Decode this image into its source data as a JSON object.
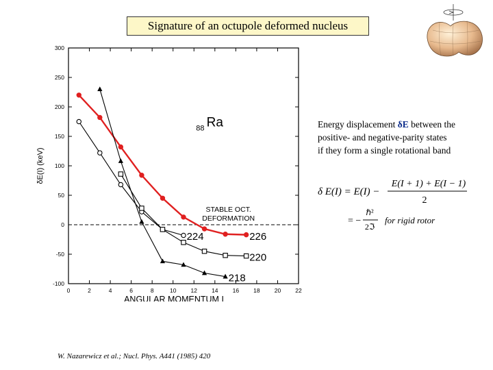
{
  "title": "Signature of an octupole deformed nucleus",
  "description": {
    "prefix": "Energy displacement ",
    "symbol": "δE",
    "line1_rest": " between the",
    "line2": "positive- and negative-parity states",
    "line3": "if they form a single rotational band"
  },
  "formula": {
    "lhs": "δ E(I) = E(I) −",
    "numerator": "E(I + 1) + E(I − 1)",
    "denominator": "2",
    "approx_lhs": "= −",
    "frac_top": "ℏ²",
    "frac_bot": "2ℑ",
    "condition": "for  rigid  rotor"
  },
  "citation": "W. Nazarewicz et al.; Nucl. Phys. A441 (1985) 420",
  "chart_data": {
    "type": "line",
    "element_label": {
      "mass_prefix": "88",
      "symbol": "Ra"
    },
    "xlabel": "ANGULAR MOMENTUM I",
    "ylabel": "δE(I) (keV)",
    "xlim": [
      0,
      22
    ],
    "ylim": [
      -100,
      300
    ],
    "xticks": [
      0,
      2,
      4,
      6,
      8,
      10,
      12,
      14,
      16,
      18,
      20,
      22
    ],
    "yticks": [
      300,
      250,
      200,
      150,
      100,
      50,
      0,
      -50,
      -100
    ],
    "reference_line": {
      "y": 0,
      "style": "dashed"
    },
    "annotation": [
      "STABLE OCT.",
      "DEFORMATION"
    ],
    "series": [
      {
        "name": "226",
        "marker": "filled-circle",
        "color": "#e02020",
        "x": [
          1,
          3,
          5,
          7,
          9,
          11,
          13,
          15,
          17
        ],
        "y": [
          220,
          182,
          132,
          84,
          45,
          13,
          -7,
          -16,
          -17
        ]
      },
      {
        "name": "224",
        "marker": "open-circle",
        "color": "#000000",
        "x": [
          1,
          3,
          5,
          7,
          9,
          11
        ],
        "y": [
          175,
          122,
          68,
          22,
          -8,
          -18
        ]
      },
      {
        "name": "220",
        "marker": "open-square",
        "color": "#000000",
        "x": [
          5,
          7,
          9,
          11,
          13,
          15,
          17
        ],
        "y": [
          86,
          28,
          -8,
          -30,
          -45,
          -52,
          -53
        ]
      },
      {
        "name": "218",
        "marker": "filled-triangle",
        "color": "#000000",
        "x": [
          3,
          5,
          7,
          9,
          11,
          13,
          15
        ],
        "y": [
          230,
          108,
          5,
          -62,
          -68,
          -82,
          -88
        ]
      }
    ],
    "series_label_anchor_x": {
      "226": 17.3,
      "224": 11.3,
      "220": 17.3,
      "218": 15.3
    },
    "series_label_anchor_y": {
      "226": -20,
      "224": -20,
      "220": -55,
      "218": -90
    }
  }
}
